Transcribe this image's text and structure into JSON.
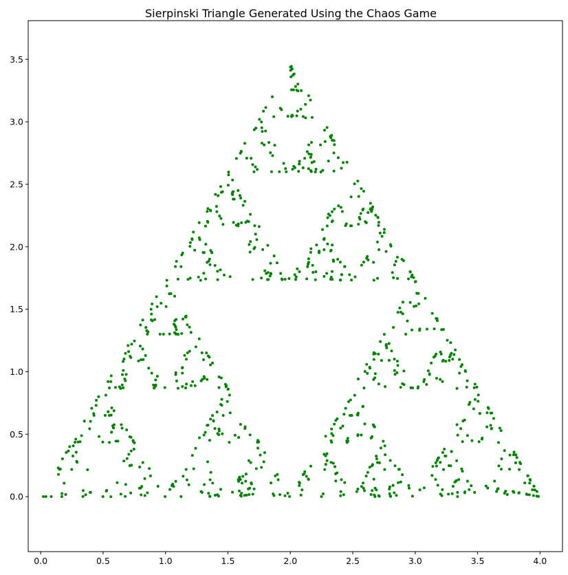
{
  "chart_data": {
    "type": "scatter",
    "title": "Sierpinski Triangle Generated Using the Chaos Game",
    "xlabel": "",
    "ylabel": "",
    "xlim": [
      -0.1,
      4.18
    ],
    "ylim": [
      -0.44,
      3.81
    ],
    "xticks": [
      0.0,
      0.5,
      1.0,
      1.5,
      2.0,
      2.5,
      3.0,
      3.5,
      4.0
    ],
    "xtick_labels": [
      "0.0",
      "0.5",
      "1.0",
      "1.5",
      "2.0",
      "2.5",
      "3.0",
      "3.5",
      "4.0"
    ],
    "yticks": [
      0.0,
      0.5,
      1.0,
      1.5,
      2.0,
      2.5,
      3.0,
      3.5
    ],
    "ytick_labels": [
      "0.0",
      "0.5",
      "1.0",
      "1.5",
      "2.0",
      "2.5",
      "3.0",
      "3.5"
    ],
    "grid": false,
    "legend": "none",
    "marker_color": "#008000",
    "series": [
      {
        "vertices": [
          [
            0.0,
            0.0
          ],
          [
            4.0,
            0.0
          ],
          [
            2.0,
            3.4641
          ]
        ],
        "points_count": 1000
      }
    ]
  }
}
